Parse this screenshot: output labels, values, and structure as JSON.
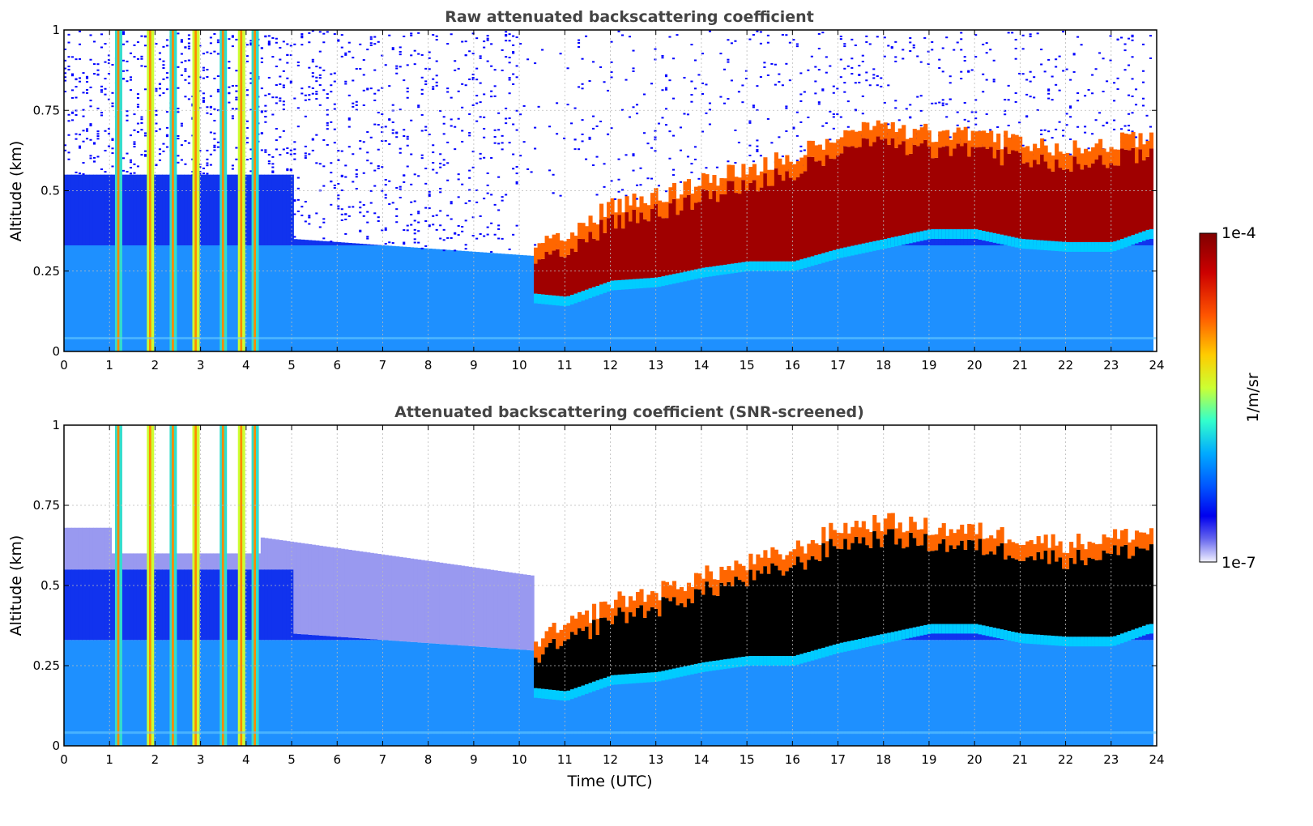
{
  "chart_data": [
    {
      "type": "heatmap",
      "title": "Raw attenuated backscattering coefficient",
      "xlabel": "",
      "ylabel": "Altitude (km)",
      "xlim": [
        0,
        24
      ],
      "ylim": [
        0,
        1
      ],
      "x_ticks": [
        "0",
        "1",
        "2",
        "3",
        "4",
        "5",
        "6",
        "7",
        "8",
        "9",
        "10",
        "11",
        "12",
        "13",
        "14",
        "15",
        "16",
        "17",
        "18",
        "19",
        "20",
        "21",
        "22",
        "23",
        "24"
      ],
      "y_ticks": [
        "0",
        "0.25",
        "0.5",
        "0.75",
        "1"
      ],
      "grid": true,
      "colorscale": "jet (log)",
      "features": {
        "dense_columns_hours": [
          1.2,
          1.9,
          2.4,
          2.9,
          3.5,
          3.9,
          4.2
        ],
        "layer_top_km": [
          [
            10.3,
            0.28
          ],
          [
            11,
            0.32
          ],
          [
            12,
            0.4
          ],
          [
            13,
            0.43
          ],
          [
            14,
            0.48
          ],
          [
            15,
            0.52
          ],
          [
            16,
            0.56
          ],
          [
            17,
            0.63
          ],
          [
            18,
            0.65
          ],
          [
            19,
            0.63
          ],
          [
            20,
            0.62
          ],
          [
            21,
            0.6
          ],
          [
            22,
            0.58
          ],
          [
            23,
            0.6
          ],
          [
            23.8,
            0.62
          ]
        ],
        "layer_base_km": [
          [
            10.3,
            0.18
          ],
          [
            11,
            0.17
          ],
          [
            12,
            0.22
          ],
          [
            13,
            0.23
          ],
          [
            14,
            0.26
          ],
          [
            15,
            0.28
          ],
          [
            16,
            0.28
          ],
          [
            17,
            0.32
          ],
          [
            18,
            0.35
          ],
          [
            19,
            0.38
          ],
          [
            20,
            0.38
          ],
          [
            21,
            0.35
          ],
          [
            22,
            0.34
          ],
          [
            23,
            0.34
          ],
          [
            23.8,
            0.38
          ]
        ]
      }
    },
    {
      "type": "heatmap",
      "title": "Attenuated backscattering coefficient (SNR-screened)",
      "xlabel": "Time (UTC)",
      "ylabel": "Altitude (km)",
      "xlim": [
        0,
        24
      ],
      "ylim": [
        0,
        1
      ],
      "x_ticks": [
        "0",
        "1",
        "2",
        "3",
        "4",
        "5",
        "6",
        "7",
        "8",
        "9",
        "10",
        "11",
        "12",
        "13",
        "14",
        "15",
        "16",
        "17",
        "18",
        "19",
        "20",
        "21",
        "22",
        "23",
        "24"
      ],
      "y_ticks": [
        "0",
        "0.25",
        "0.5",
        "0.75",
        "1"
      ],
      "grid": true,
      "colorscale": "jet (log), screened",
      "features": {
        "saturated_color": "#000000",
        "screened_color": "#ffffff"
      }
    }
  ],
  "colorbar": {
    "label": "1/m/sr",
    "max_label": "1e-4",
    "min_label": "1e-7"
  }
}
